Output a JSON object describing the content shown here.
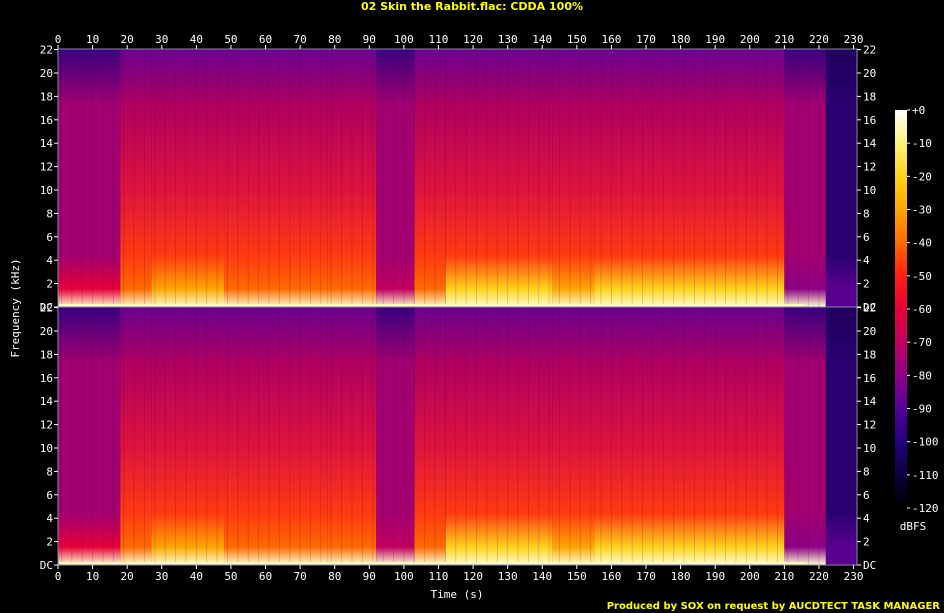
{
  "chart_data": {
    "type": "heatmap",
    "title": "02 Skin the Rabbit.flac: CDDA 100%",
    "xlabel": "Time (s)",
    "ylabel": "Frequency (kHz)",
    "xlim": [
      0,
      231
    ],
    "ylim": [
      0,
      22.05
    ],
    "x_ticks": [
      0,
      10,
      20,
      30,
      40,
      50,
      60,
      70,
      80,
      90,
      100,
      110,
      120,
      130,
      140,
      150,
      160,
      170,
      180,
      190,
      200,
      210,
      220,
      230
    ],
    "y_ticks": [
      {
        "v": 0,
        "label": "DC"
      },
      {
        "v": 2,
        "label": "2"
      },
      {
        "v": 4,
        "label": "4"
      },
      {
        "v": 6,
        "label": "6"
      },
      {
        "v": 8,
        "label": "8"
      },
      {
        "v": 10,
        "label": "10"
      },
      {
        "v": 12,
        "label": "12"
      },
      {
        "v": 14,
        "label": "14"
      },
      {
        "v": 16,
        "label": "16"
      },
      {
        "v": 18,
        "label": "18"
      },
      {
        "v": 20,
        "label": "20"
      },
      {
        "v": 22,
        "label": "22"
      }
    ],
    "channels": [
      "left",
      "right"
    ],
    "colorbar": {
      "label": "dBFS",
      "range": [
        -120,
        0
      ],
      "ticks": [
        {
          "v": 0,
          "label": "+0"
        },
        {
          "v": -10,
          "label": "-10"
        },
        {
          "v": -20,
          "label": "-20"
        },
        {
          "v": -30,
          "label": "-30"
        },
        {
          "v": -40,
          "label": "-40"
        },
        {
          "v": -50,
          "label": "-50"
        },
        {
          "v": -60,
          "label": "-60"
        },
        {
          "v": -70,
          "label": "-70"
        },
        {
          "v": -80,
          "label": "-80"
        },
        {
          "v": -90,
          "label": "-90"
        },
        {
          "v": -100,
          "label": "-100"
        },
        {
          "v": -110,
          "label": "-110"
        },
        {
          "v": -120,
          "label": "-120"
        }
      ],
      "colors": [
        "#ffffff",
        "#fff27a",
        "#ffd21a",
        "#ffa600",
        "#ff6a00",
        "#ff1f14",
        "#e80038",
        "#c2005f",
        "#8e0085",
        "#55009a",
        "#24007e",
        "#0b0040",
        "#000000"
      ]
    },
    "segments": [
      {
        "t0": 0,
        "t1": 18,
        "level": 0.55
      },
      {
        "t0": 18,
        "t1": 27,
        "level": 0.72
      },
      {
        "t0": 27,
        "t1": 48,
        "level": 0.78
      },
      {
        "t0": 48,
        "t1": 78,
        "level": 0.68
      },
      {
        "t0": 78,
        "t1": 92,
        "level": 0.75
      },
      {
        "t0": 92,
        "t1": 103,
        "level": 0.45
      },
      {
        "t0": 103,
        "t1": 112,
        "level": 0.7
      },
      {
        "t0": 112,
        "t1": 143,
        "level": 0.88
      },
      {
        "t0": 143,
        "t1": 155,
        "level": 0.82
      },
      {
        "t0": 155,
        "t1": 210,
        "level": 0.9
      },
      {
        "t0": 210,
        "t1": 222,
        "level": 0.3
      },
      {
        "t0": 222,
        "t1": 231,
        "level": 0.05
      }
    ]
  },
  "footer": {
    "text": "Produced by SOX on request by AUCDTECT TASK MANAGER"
  }
}
